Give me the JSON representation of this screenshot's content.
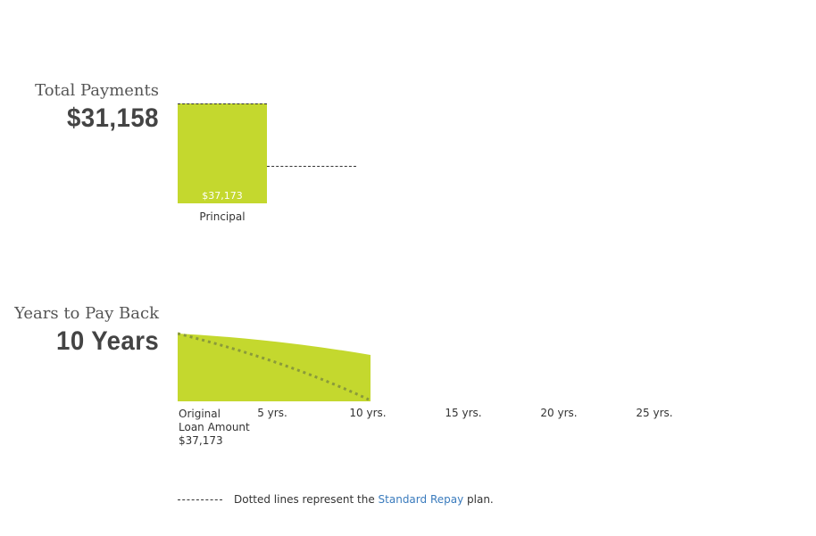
{
  "payments": {
    "title": "Total Payments",
    "amount": "$31,158",
    "bar_value_label": "$37,173",
    "bar_category_label": "Principal",
    "bar_color": "#c4d82e"
  },
  "payback": {
    "title": "Years to Pay Back",
    "amount": "10 Years",
    "origin_line1": "Original",
    "origin_line2": "Loan Amount",
    "origin_line3": "$37,173",
    "ticks": [
      "5 yrs.",
      "10 yrs.",
      "15 yrs.",
      "20 yrs.",
      "25 yrs."
    ],
    "area_color": "#c4d82e",
    "dotted_color": "#8a9a3a"
  },
  "legend": {
    "text_before": "Dotted lines represent the ",
    "link_text": "Standard Repay",
    "text_after": " plan."
  }
}
